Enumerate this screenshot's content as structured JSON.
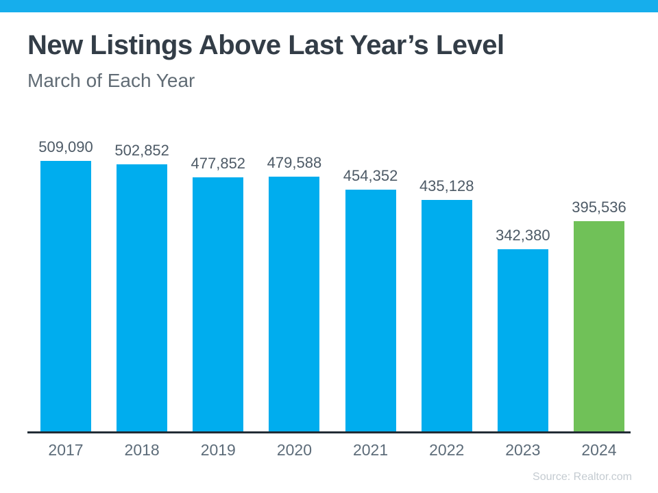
{
  "header": {
    "title": "New Listings Above Last Year’s Level",
    "subtitle": "March of Each Year"
  },
  "footer": {
    "source": "Source: Realtor.com"
  },
  "colors": {
    "accent_cyan": "#16AEEC",
    "bar_blue": "#00ADEE",
    "bar_green": "#70C158",
    "title_text": "#333D47",
    "subtitle_text": "#616C75",
    "value_label": "#4D5A66",
    "axis_label": "#5D6C79",
    "axis_line": "#222C35",
    "source_text": "#C4CBD1"
  },
  "chart_data": {
    "type": "bar",
    "title": "New Listings Above Last Year’s Level",
    "subtitle": "March of Each Year",
    "categories": [
      "2017",
      "2018",
      "2019",
      "2020",
      "2021",
      "2022",
      "2023",
      "2024"
    ],
    "values": [
      509090,
      502852,
      477852,
      479588,
      454352,
      435128,
      342380,
      395536
    ],
    "value_labels": [
      "509,090",
      "502,852",
      "477,852",
      "479,588",
      "454,352",
      "435,128",
      "342,380",
      "395,536"
    ],
    "bar_colors": [
      "blue",
      "blue",
      "blue",
      "blue",
      "blue",
      "blue",
      "blue",
      "green"
    ],
    "xlabel": "",
    "ylabel": "",
    "ylim": [
      0,
      509090
    ],
    "grid": false,
    "legend": false,
    "data_labels_position": "above-bar",
    "highlight_category": "2024"
  }
}
